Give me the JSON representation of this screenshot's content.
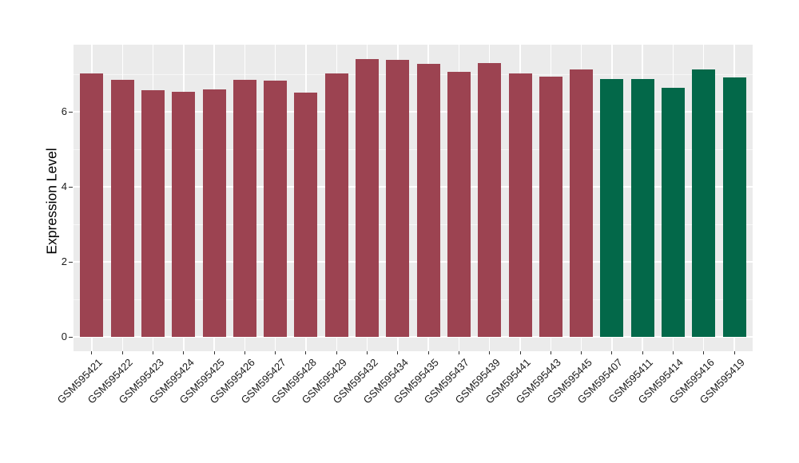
{
  "chart_data": {
    "type": "bar",
    "title": "",
    "xlabel": "",
    "ylabel": "Expression Level",
    "categories": [
      "GSM595421",
      "GSM595422",
      "GSM595423",
      "GSM595424",
      "GSM595425",
      "GSM595426",
      "GSM595427",
      "GSM595428",
      "GSM595429",
      "GSM595432",
      "GSM595434",
      "GSM595435",
      "GSM595437",
      "GSM595439",
      "GSM595441",
      "GSM595443",
      "GSM595445",
      "GSM595407",
      "GSM595411",
      "GSM595414",
      "GSM595416",
      "GSM595419"
    ],
    "values": [
      7.02,
      6.85,
      6.57,
      6.53,
      6.6,
      6.85,
      6.83,
      6.52,
      7.02,
      7.4,
      7.38,
      7.28,
      7.06,
      7.3,
      7.02,
      6.94,
      7.13,
      6.87,
      6.87,
      6.64,
      7.13,
      6.91
    ],
    "groups": [
      "red",
      "red",
      "red",
      "red",
      "red",
      "red",
      "red",
      "red",
      "red",
      "red",
      "red",
      "red",
      "red",
      "red",
      "red",
      "red",
      "red",
      "green",
      "green",
      "green",
      "green",
      "green"
    ],
    "group_colors": {
      "red": "#9C4351",
      "green": "#036849"
    },
    "y_ticks": [
      0,
      2,
      4,
      6
    ],
    "y_minor_ticks": [
      1,
      3,
      5,
      7
    ],
    "ylim": [
      -0.4,
      7.85
    ],
    "x_tick_rotation": -45,
    "grid": "major+minor",
    "legend": "none",
    "panel_background": "#EBEBEB",
    "gridline_color": "#FFFFFF",
    "axis_text_color": "#1A1A1A",
    "bar_width_fraction": 0.75
  }
}
